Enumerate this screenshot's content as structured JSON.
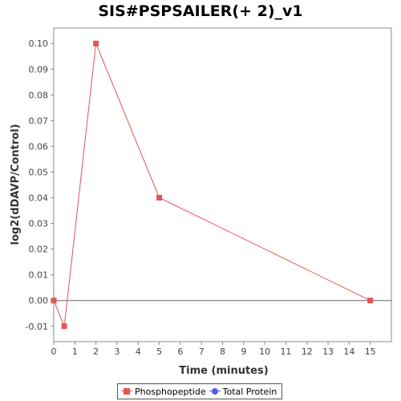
{
  "chart_data": {
    "type": "line",
    "title": "SIS#PSPSAILER(+ 2)_v1",
    "xlabel": "Time (minutes)",
    "ylabel": "log2(dDAVP/Control)",
    "xlim": [
      0,
      16
    ],
    "ylim": [
      -0.016,
      0.106
    ],
    "x_ticks": [
      0,
      1,
      2,
      3,
      4,
      5,
      6,
      7,
      8,
      9,
      10,
      11,
      12,
      13,
      14,
      15
    ],
    "y_ticks": [
      -0.01,
      0.0,
      0.01,
      0.02,
      0.03,
      0.04,
      0.05,
      0.06,
      0.07,
      0.08,
      0.09,
      0.1
    ],
    "y_tick_labels": [
      "-0.01",
      "0.00",
      "0.01",
      "0.02",
      "0.03",
      "0.04",
      "0.05",
      "0.06",
      "0.07",
      "0.08",
      "0.09",
      "0.10"
    ],
    "zero_line": true,
    "grid": false,
    "legend_position": "bottom-center",
    "series": [
      {
        "name": "Phosphopeptide",
        "color": "#e35555",
        "marker": "square",
        "x": [
          0,
          0.5,
          2,
          5,
          15
        ],
        "y": [
          0.0,
          -0.01,
          0.1,
          0.04,
          0.0
        ]
      },
      {
        "name": "Total Protein",
        "color": "#5a5ae8",
        "marker": "circle",
        "x": [],
        "y": []
      }
    ]
  }
}
